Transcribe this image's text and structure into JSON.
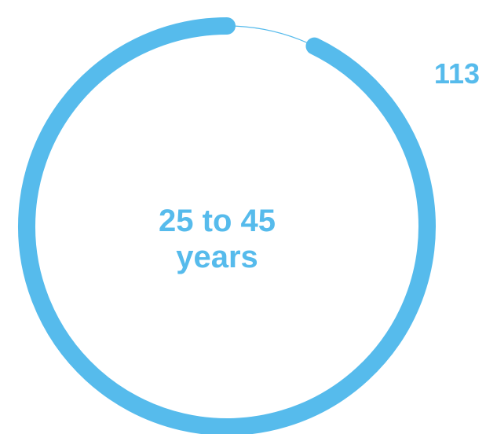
{
  "chart_data": {
    "type": "pie",
    "center_label_line1": "25 to 45",
    "center_label_line2": "years",
    "value_label": "113",
    "segments": [
      {
        "fraction": 0.928,
        "color": "#56BBEC"
      },
      {
        "fraction": 0.072,
        "color": "#56BBEC"
      }
    ]
  },
  "colors": {
    "accent": "#56BBEC"
  }
}
